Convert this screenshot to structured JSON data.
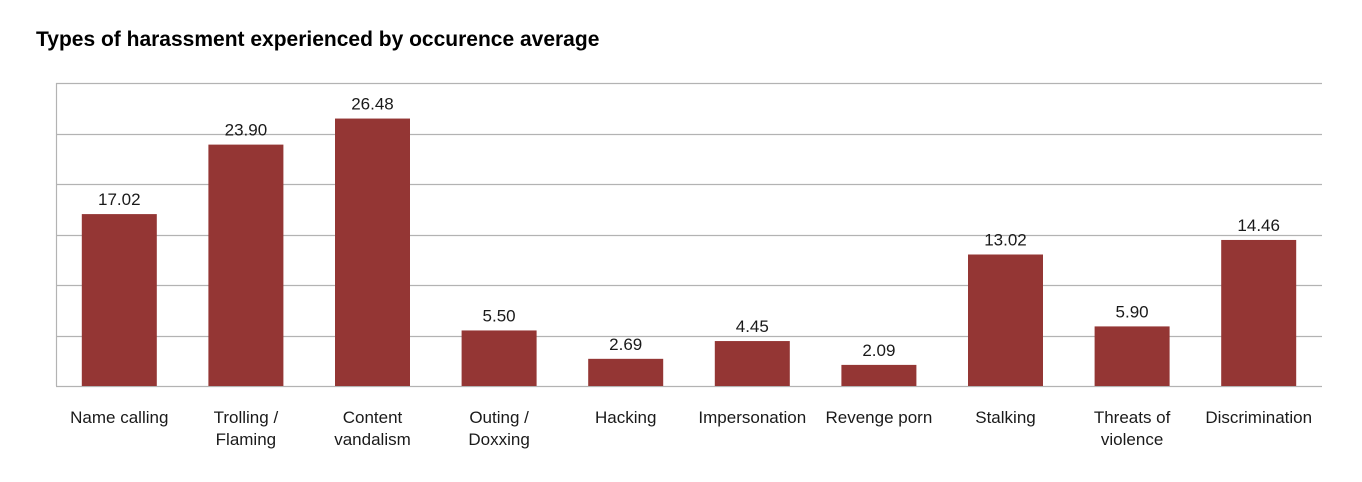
{
  "chart_data": {
    "type": "bar",
    "title": "Types of harassment experienced by occurence average",
    "categories": [
      [
        "Name calling"
      ],
      [
        "Trolling /",
        "Flaming"
      ],
      [
        "Content",
        "vandalism"
      ],
      [
        "Outing /",
        "Doxxing"
      ],
      [
        "Hacking"
      ],
      [
        "Impersonation"
      ],
      [
        "Revenge porn"
      ],
      [
        "Stalking"
      ],
      [
        "Threats of",
        "violence"
      ],
      [
        "Discrimination"
      ]
    ],
    "values": [
      17.02,
      23.9,
      26.48,
      5.5,
      2.69,
      4.45,
      2.09,
      13.02,
      5.9,
      14.46
    ],
    "value_labels": [
      "17.02",
      "23.90",
      "26.48",
      "5.50",
      "2.69",
      "4.45",
      "2.09",
      "13.02",
      "5.90",
      "14.46"
    ],
    "ylim": [
      0,
      30
    ],
    "gridlines": [
      0,
      5,
      10,
      15,
      20,
      25,
      30
    ],
    "grid": true,
    "show_y_tick_labels": false,
    "bar_color": "#943634",
    "grid_color": "#b3b3b3"
  }
}
